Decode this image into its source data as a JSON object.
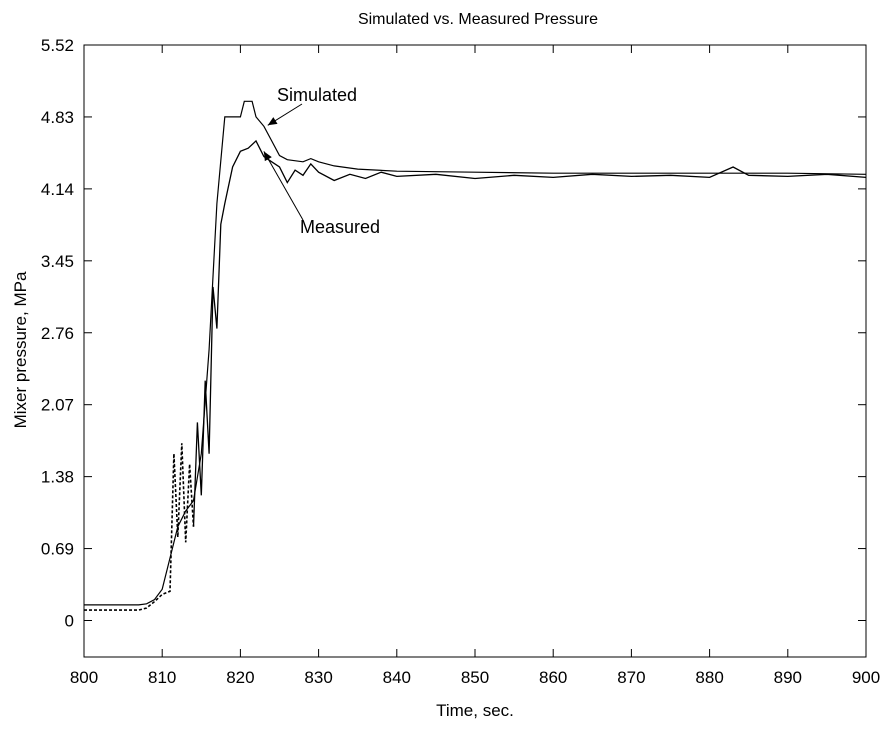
{
  "chart_data": {
    "type": "line",
    "title": "Simulated vs. Measured Pressure",
    "xlabel": "Time, sec.",
    "ylabel": "Mixer pressure, MPa",
    "xlim": [
      800,
      900
    ],
    "ylim": [
      -0.35,
      5.52
    ],
    "x_ticks": [
      800,
      810,
      820,
      830,
      840,
      850,
      860,
      870,
      880,
      890,
      900
    ],
    "x_tick_labels": [
      "800",
      "810",
      "820",
      "830",
      "840",
      "850",
      "860",
      "870",
      "880",
      "890",
      "900"
    ],
    "y_ticks": [
      0,
      0.69,
      1.38,
      2.07,
      2.76,
      3.45,
      4.14,
      4.83,
      5.52
    ],
    "y_tick_labels": [
      "0",
      "0.69",
      "1.38",
      "2.07",
      "2.76",
      "3.45",
      "4.14",
      "4.83",
      "5.52"
    ],
    "grid": false,
    "legend": "none",
    "annotations": [
      {
        "text": "Simulated",
        "points_to": [
          823.5,
          4.75
        ]
      },
      {
        "text": "Measured",
        "points_to": [
          823.0,
          4.5
        ]
      }
    ],
    "series": [
      {
        "name": "Simulated",
        "style": "solid",
        "color": "#000000",
        "x": [
          800,
          805,
          807,
          808,
          809,
          810,
          811,
          812,
          813,
          814,
          815,
          816,
          817,
          818,
          819,
          820,
          820.5,
          821.5,
          822,
          823,
          824,
          825,
          826,
          828,
          829,
          830,
          832,
          835,
          840,
          850,
          860,
          870,
          880,
          890,
          900
        ],
        "y": [
          0.15,
          0.15,
          0.15,
          0.16,
          0.2,
          0.3,
          0.6,
          0.9,
          1.05,
          1.15,
          1.6,
          2.6,
          4.0,
          4.83,
          4.83,
          4.83,
          4.98,
          4.98,
          4.83,
          4.74,
          4.6,
          4.46,
          4.42,
          4.4,
          4.43,
          4.4,
          4.36,
          4.33,
          4.31,
          4.3,
          4.29,
          4.29,
          4.29,
          4.29,
          4.28
        ]
      },
      {
        "name": "Measured",
        "style": "mixed",
        "color": "#000000",
        "x": [
          800,
          805,
          807,
          808,
          809,
          810,
          811,
          811.5,
          812,
          812.5,
          813,
          813.5,
          814,
          814.5,
          815,
          815.5,
          816,
          816.5,
          817,
          817.5,
          818,
          819,
          820,
          821,
          822,
          823,
          824,
          825,
          826,
          827,
          828,
          829,
          830,
          832,
          834,
          836,
          838,
          840,
          845,
          850,
          855,
          860,
          865,
          870,
          875,
          880,
          883,
          885,
          890,
          895,
          900
        ],
        "y": [
          0.1,
          0.1,
          0.1,
          0.12,
          0.18,
          0.25,
          0.28,
          1.6,
          0.8,
          1.7,
          0.75,
          1.5,
          0.9,
          1.9,
          1.2,
          2.3,
          1.6,
          3.2,
          2.8,
          3.8,
          4.0,
          4.35,
          4.5,
          4.53,
          4.6,
          4.45,
          4.4,
          4.35,
          4.2,
          4.32,
          4.27,
          4.38,
          4.3,
          4.22,
          4.28,
          4.24,
          4.3,
          4.26,
          4.28,
          4.24,
          4.27,
          4.25,
          4.28,
          4.26,
          4.27,
          4.25,
          4.35,
          4.27,
          4.26,
          4.28,
          4.25
        ]
      }
    ]
  }
}
